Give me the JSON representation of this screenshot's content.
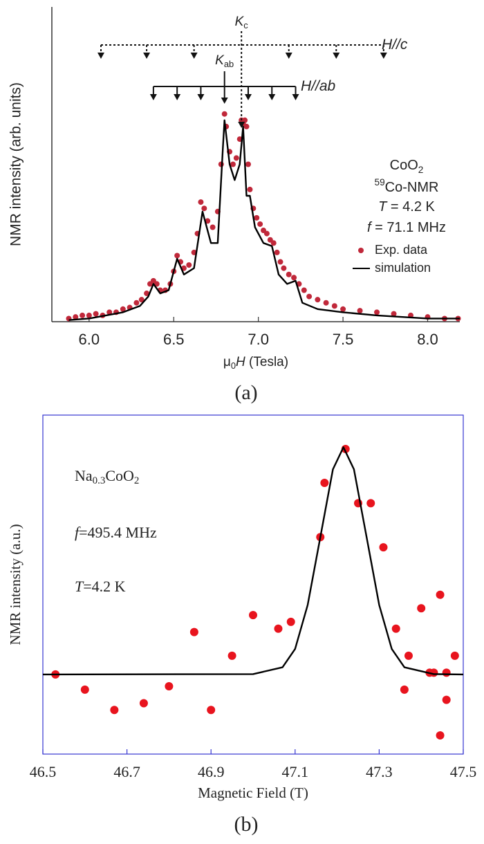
{
  "chart_data": [
    {
      "type": "scatter",
      "xlabel": [
        {
          "text": "μ"
        },
        {
          "text": "0",
          "sub": true
        },
        {
          "text": "H",
          "italic": true
        },
        {
          "text": " (Tesla)"
        }
      ],
      "ylabel": "NMR intensity (arb. units)",
      "xlim": [
        5.78,
        8.19
      ],
      "xticks": [
        {
          "value": 6,
          "label": "6.0"
        },
        6.5,
        {
          "value": 7,
          "label": "7.0"
        },
        7.5,
        {
          "value": 8,
          "label": "8.0"
        }
      ],
      "ylim": [
        0,
        1
      ],
      "series": [
        {
          "name": "Exp. data",
          "kind": "scatter",
          "color": "#c0283a",
          "x": [
            5.88,
            5.92,
            5.96,
            6.0,
            6.04,
            6.08,
            6.12,
            6.16,
            6.2,
            6.24,
            6.28,
            6.31,
            6.34,
            6.36,
            6.38,
            6.4,
            6.42,
            6.45,
            6.48,
            6.5,
            6.52,
            6.54,
            6.56,
            6.59,
            6.62,
            6.64,
            6.66,
            6.68,
            6.7,
            6.73,
            6.76,
            6.78,
            6.8,
            6.81,
            6.83,
            6.85,
            6.87,
            6.89,
            6.9,
            6.91,
            6.92,
            6.93,
            6.94,
            6.95,
            6.97,
            6.99,
            7.01,
            7.03,
            7.05,
            7.07,
            7.09,
            7.11,
            7.13,
            7.15,
            7.18,
            7.21,
            7.24,
            7.27,
            7.3,
            7.35,
            7.4,
            7.45,
            7.5,
            7.6,
            7.7,
            7.8,
            7.9,
            8.0,
            8.1,
            8.18
          ],
          "values": [
            0.01,
            0.015,
            0.02,
            0.02,
            0.025,
            0.02,
            0.03,
            0.03,
            0.04,
            0.045,
            0.06,
            0.07,
            0.09,
            0.12,
            0.13,
            0.12,
            0.1,
            0.1,
            0.12,
            0.16,
            0.21,
            0.19,
            0.17,
            0.18,
            0.22,
            0.28,
            0.38,
            0.36,
            0.32,
            0.3,
            0.35,
            0.5,
            0.66,
            0.62,
            0.54,
            0.5,
            0.52,
            0.58,
            0.64,
            0.63,
            0.64,
            0.62,
            0.5,
            0.42,
            0.36,
            0.33,
            0.31,
            0.29,
            0.28,
            0.26,
            0.25,
            0.22,
            0.19,
            0.17,
            0.15,
            0.14,
            0.12,
            0.1,
            0.08,
            0.07,
            0.06,
            0.05,
            0.04,
            0.035,
            0.03,
            0.025,
            0.02,
            0.015,
            0.01,
            0.01
          ]
        },
        {
          "name": "simulation",
          "kind": "line",
          "color": "#000000",
          "x": [
            5.88,
            6.0,
            6.1,
            6.2,
            6.3,
            6.35,
            6.38,
            6.42,
            6.47,
            6.52,
            6.56,
            6.62,
            6.67,
            6.72,
            6.76,
            6.79,
            6.8,
            6.83,
            6.86,
            6.89,
            6.91,
            6.93,
            6.95,
            6.98,
            7.03,
            7.08,
            7.12,
            7.17,
            7.22,
            7.26,
            7.35,
            7.5,
            7.7,
            8.0,
            8.19
          ],
          "values": [
            0.005,
            0.01,
            0.02,
            0.03,
            0.05,
            0.08,
            0.12,
            0.09,
            0.1,
            0.2,
            0.15,
            0.17,
            0.35,
            0.25,
            0.25,
            0.55,
            0.64,
            0.5,
            0.45,
            0.5,
            0.62,
            0.4,
            0.4,
            0.3,
            0.25,
            0.24,
            0.15,
            0.12,
            0.13,
            0.06,
            0.04,
            0.03,
            0.02,
            0.01,
            0.01
          ]
        }
      ],
      "markers": [
        {
          "label": [
            {
              "text": "H//c",
              "italic": true
            }
          ],
          "center_label": [
            {
              "text": "K",
              "italic": true
            },
            {
              "text": "c",
              "sub": true
            }
          ],
          "style": "dashed",
          "positions": [
            6.07,
            6.34,
            6.62,
            6.9,
            7.18,
            7.46,
            7.74
          ]
        },
        {
          "label": [
            {
              "text": "H//ab",
              "italic": true
            }
          ],
          "center_label": [
            {
              "text": "K",
              "italic": true
            },
            {
              "text": "ab",
              "sub": true
            }
          ],
          "style": "solid",
          "positions": [
            6.38,
            6.52,
            6.66,
            6.8,
            6.94,
            7.08,
            7.22
          ]
        }
      ],
      "notes": [
        [
          {
            "text": "CoO"
          },
          {
            "text": "2",
            "sub": true
          }
        ],
        [
          {
            "text": "59",
            "sup": true
          },
          {
            "text": "Co-NMR"
          }
        ],
        [
          {
            "text": "T",
            "italic": true
          },
          {
            "text": " = 4.2 K"
          }
        ],
        [
          {
            "text": "f",
            "italic": true
          },
          {
            "text": " = 71.1 MHz"
          }
        ]
      ],
      "caption": "(a)"
    },
    {
      "type": "scatter",
      "xlabel": [
        {
          "text": "Magnetic Field (T)"
        }
      ],
      "ylabel": "NMR intensity (a.u.)",
      "xlim": [
        46.5,
        47.5
      ],
      "xticks": [
        46.5,
        46.7,
        46.9,
        47.1,
        47.3,
        47.5
      ],
      "ylim": [
        0,
        1
      ],
      "frame_color": "#3535d0",
      "series": [
        {
          "name": null,
          "kind": "scatter",
          "color": "#e8141e",
          "x": [
            46.53,
            46.6,
            46.67,
            46.74,
            46.8,
            46.86,
            46.9,
            46.95,
            47.0,
            47.06,
            47.09,
            47.16,
            47.17,
            47.22,
            47.25,
            47.28,
            47.31,
            47.34,
            47.36,
            47.37,
            47.4,
            47.42,
            47.43,
            47.445,
            47.445,
            47.46,
            47.46,
            47.48
          ],
          "values": [
            0.235,
            0.19,
            0.13,
            0.15,
            0.2,
            0.36,
            0.13,
            0.29,
            0.41,
            0.37,
            0.39,
            0.64,
            0.8,
            0.9,
            0.74,
            0.74,
            0.61,
            0.37,
            0.19,
            0.29,
            0.43,
            0.24,
            0.24,
            0.47,
            0.055,
            0.24,
            0.16,
            0.29
          ]
        },
        {
          "name": null,
          "kind": "line",
          "color": "#000000",
          "x": [
            46.5,
            47.0,
            47.07,
            47.1,
            47.13,
            47.16,
            47.19,
            47.215,
            47.24,
            47.27,
            47.3,
            47.33,
            47.36,
            47.43,
            47.5
          ],
          "values": [
            0.235,
            0.236,
            0.256,
            0.31,
            0.44,
            0.64,
            0.84,
            0.905,
            0.84,
            0.64,
            0.44,
            0.31,
            0.256,
            0.236,
            0.235
          ]
        }
      ],
      "notes": [
        [
          {
            "text": "Na"
          },
          {
            "text": "0.3",
            "sub": true
          },
          {
            "text": "CoO"
          },
          {
            "text": "2",
            "sub": true
          }
        ],
        [
          {
            "text": "f",
            "italic": true
          },
          {
            "text": "=495.4 MHz"
          }
        ],
        [
          {
            "text": "T",
            "italic": true
          },
          {
            "text": "=4.2 K"
          }
        ]
      ],
      "caption": "(b)"
    }
  ]
}
